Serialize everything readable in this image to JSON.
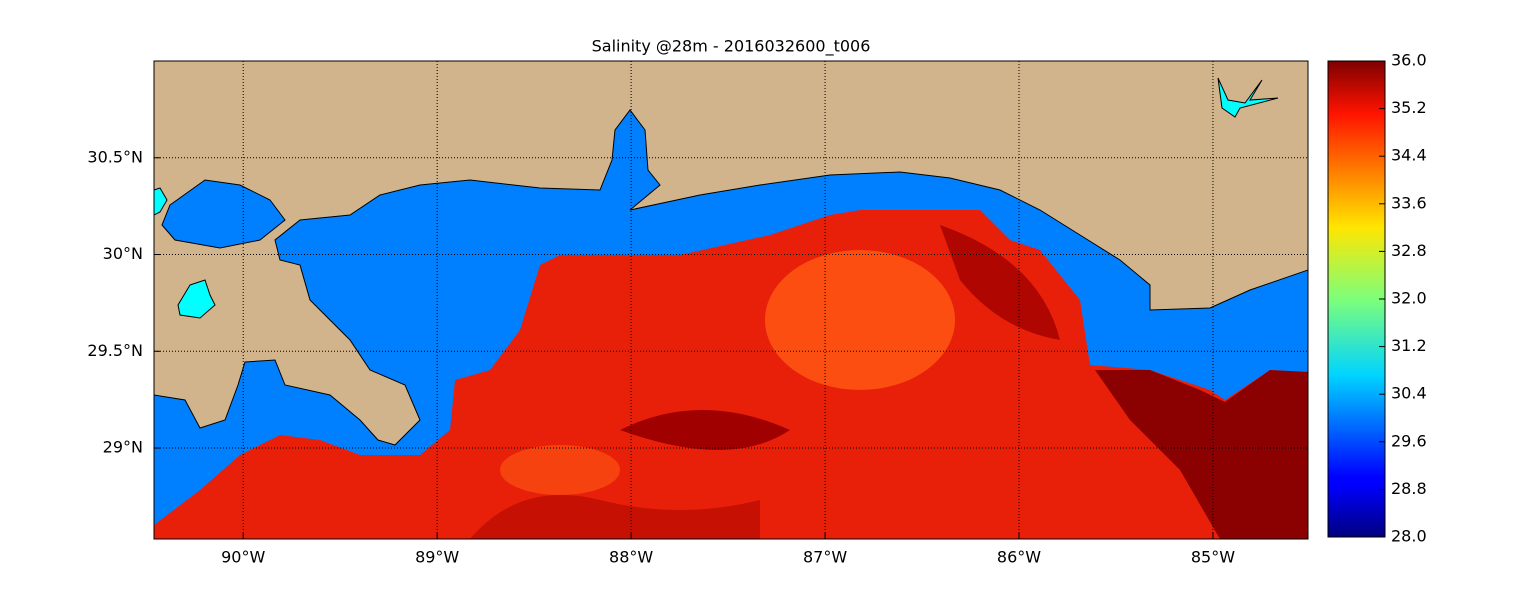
{
  "map": {
    "title": "Salinity @28m - 2016032600_t006",
    "xlim": [
      -90.46,
      -84.51
    ],
    "ylim": [
      28.53,
      31.0
    ],
    "xticks": [
      {
        "value": -90,
        "label": "90°W"
      },
      {
        "value": -89,
        "label": "89°W"
      },
      {
        "value": -88,
        "label": "88°W"
      },
      {
        "value": -87,
        "label": "87°W"
      },
      {
        "value": -86,
        "label": "86°W"
      },
      {
        "value": -85,
        "label": "85°W"
      }
    ],
    "yticks": [
      {
        "value": 29,
        "label": "29°N"
      },
      {
        "value": 29.5,
        "label": "29.5°N"
      },
      {
        "value": 30,
        "label": "30°N"
      },
      {
        "value": 30.5,
        "label": "30.5°N"
      }
    ],
    "grid": true,
    "colorbar": {
      "colormap": "jet",
      "lim": [
        28.0,
        36.0
      ],
      "ticks": [
        {
          "value": 28,
          "label": "28.0"
        },
        {
          "value": 28.8,
          "label": "28.8"
        },
        {
          "value": 29.6,
          "label": "29.6"
        },
        {
          "value": 30.4,
          "label": "30.4"
        },
        {
          "value": 31.2,
          "label": "31.2"
        },
        {
          "value": 32,
          "label": "32.0"
        },
        {
          "value": 32.8,
          "label": "32.8"
        },
        {
          "value": 33.6,
          "label": "33.6"
        },
        {
          "value": 34.4,
          "label": "34.4"
        },
        {
          "value": 35.2,
          "label": "35.2"
        },
        {
          "value": 36,
          "label": "36.0"
        }
      ]
    }
  }
}
